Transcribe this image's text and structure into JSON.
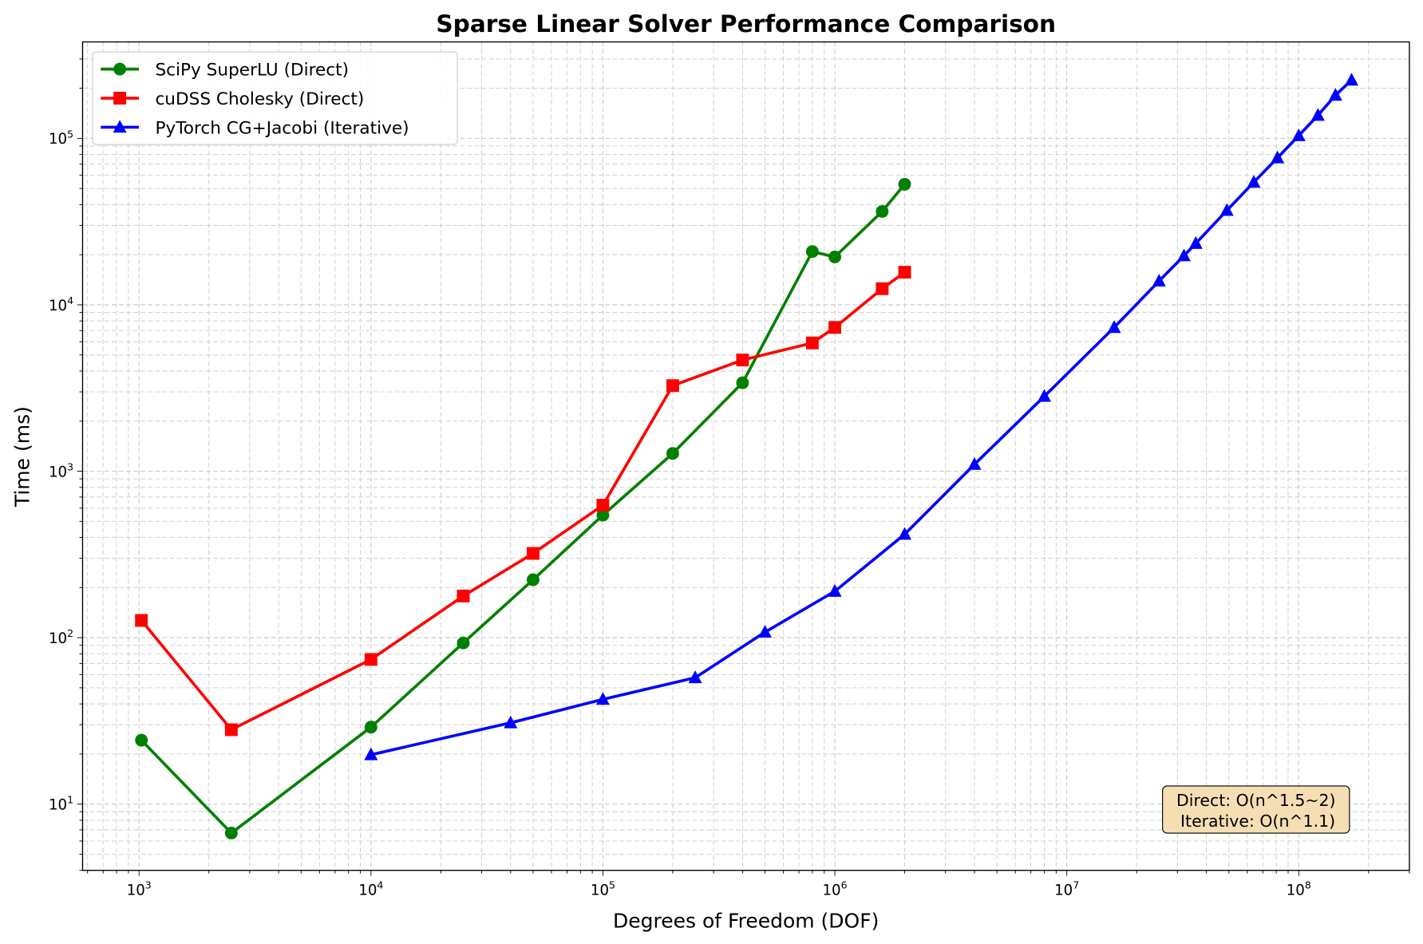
{
  "chart_data": {
    "type": "line",
    "title": "Sparse Linear Solver Performance Comparison",
    "xlabel": "Degrees of Freedom (DOF)",
    "ylabel": "Time (ms)",
    "xscale": "log",
    "yscale": "log",
    "xlim": [
      571,
      300000000
    ],
    "ylim": [
      4.0,
      380000
    ],
    "x_ticks": [
      1000,
      10000,
      100000,
      1000000,
      10000000,
      100000000
    ],
    "x_tick_labels": [
      "10^3",
      "10^4",
      "10^5",
      "10^6",
      "10^7",
      "10^8"
    ],
    "y_ticks": [
      10,
      100,
      1000,
      10000,
      100000
    ],
    "y_tick_labels": [
      "10^1",
      "10^2",
      "10^3",
      "10^4",
      "10^5"
    ],
    "grid": true,
    "legend_placement": "top-left",
    "series": [
      {
        "name": "SciPy SuperLU (Direct)",
        "color": "#008000",
        "marker": "circle",
        "x": [
          1024,
          2500,
          10000,
          25000,
          50000,
          100000,
          200000,
          400000,
          800000,
          1000000,
          1600000,
          2000000
        ],
        "y": [
          24.2,
          6.7,
          29,
          93,
          223,
          545,
          1280,
          3400,
          20900,
          19400,
          36400,
          53000
        ]
      },
      {
        "name": "cuDSS Cholesky (Direct)",
        "color": "#ff0000",
        "marker": "square",
        "x": [
          1024,
          2500,
          10000,
          25000,
          50000,
          100000,
          200000,
          400000,
          800000,
          1000000,
          1600000,
          2000000
        ],
        "y": [
          127,
          28,
          74,
          178,
          321,
          625,
          3270,
          4660,
          5900,
          7310,
          12500,
          15700
        ]
      },
      {
        "name": "PyTorch CG+Jacobi (Iterative)",
        "color": "#0000ff",
        "marker": "triangle",
        "x": [
          10000,
          40000,
          100000,
          250000,
          500000,
          1000000,
          2000000,
          4000000,
          8000000,
          16000000,
          25000000,
          32000000,
          36000000,
          49000000,
          64000000,
          81000000,
          100000000,
          121000000,
          144000000,
          169000000
        ],
        "y": [
          19.8,
          30.8,
          42.6,
          57.5,
          108,
          190,
          418,
          1100,
          2820,
          7310,
          13900,
          19700,
          23400,
          36900,
          54500,
          76400,
          103800,
          137600,
          181600,
          224000
        ]
      }
    ],
    "annotations": [
      "Direct: O(n^1.5~2)",
      "Iterative: O(n^1.1)"
    ],
    "annotation_box_color": "#f5deb3"
  }
}
